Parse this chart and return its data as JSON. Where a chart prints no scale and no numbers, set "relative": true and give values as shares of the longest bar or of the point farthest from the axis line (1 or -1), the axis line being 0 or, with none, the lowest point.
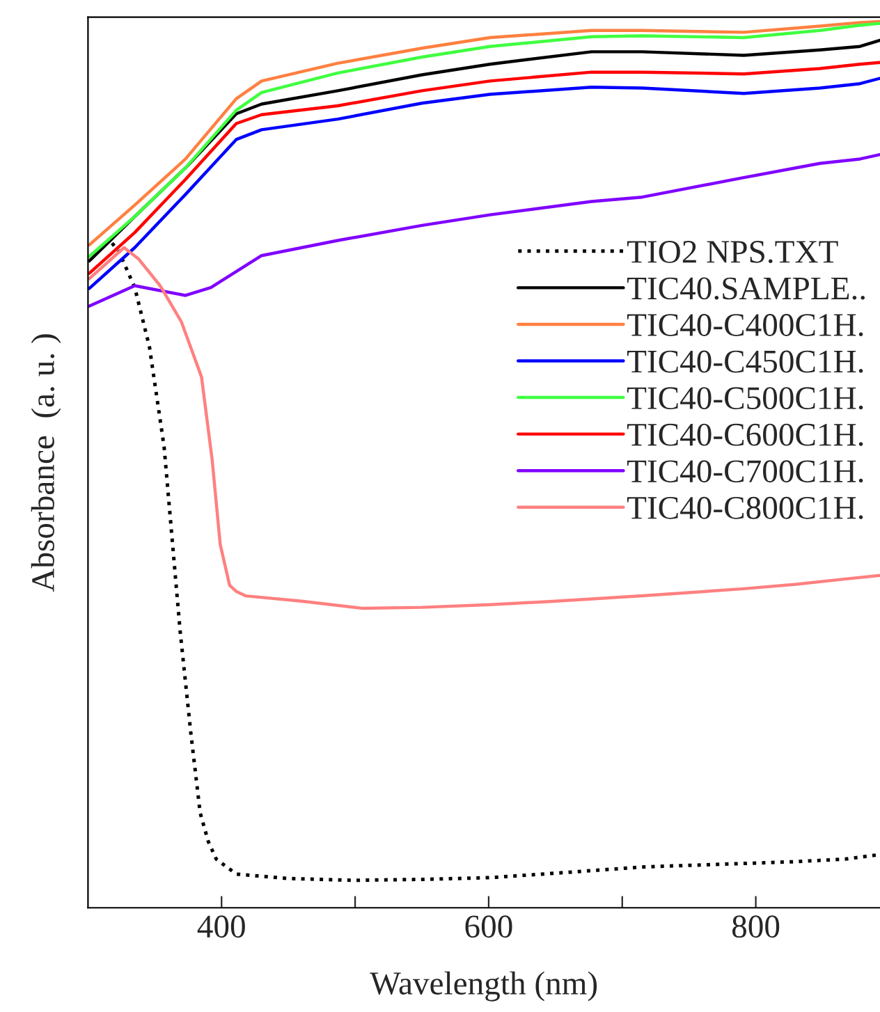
{
  "chart_data": {
    "type": "line",
    "relative": true,
    "xlabel": "Wavelength (nm)",
    "ylabel": "Absorbance  (a. u. )",
    "xlim": [
      300,
      893
    ],
    "xticks": [
      400,
      {
        "value": 500,
        "label": null
      },
      600,
      {
        "value": 700,
        "label": null
      },
      800
    ],
    "legend": "upper right",
    "grid": false,
    "tick_labels": "x",
    "series": [
      {
        "name": "TIO2 NPS.TXT",
        "color": "#000000",
        "line_style": "dotted",
        "x": [
          318,
          323,
          335,
          346,
          357,
          366,
          369,
          377,
          384,
          390,
          396,
          411,
          450,
          498,
          550,
          601,
          650,
          715,
          791,
          830,
          867,
          893
        ],
        "values": [
          0.75,
          0.741,
          0.7,
          0.633,
          0.52,
          0.364,
          0.312,
          0.197,
          0.107,
          0.075,
          0.055,
          0.038,
          0.033,
          0.031,
          0.032,
          0.034,
          0.039,
          0.046,
          0.05,
          0.052,
          0.055,
          0.06
        ]
      },
      {
        "name": "TIC40.SAMPLE..",
        "color": "#000000",
        "x": [
          301,
          335,
          373,
          411,
          430,
          487,
          550,
          601,
          677,
          715,
          791,
          848,
          878,
          893
        ],
        "values": [
          0.73,
          0.78,
          0.835,
          0.896,
          0.907,
          0.922,
          0.94,
          0.952,
          0.966,
          0.966,
          0.962,
          0.968,
          0.972,
          0.979
        ]
      },
      {
        "name": "TIC40-C400C1H.",
        "color": "#ff8040",
        "x": [
          301,
          335,
          373,
          411,
          430,
          487,
          550,
          601,
          677,
          715,
          791,
          848,
          878,
          893
        ],
        "values": [
          0.748,
          0.793,
          0.845,
          0.913,
          0.933,
          0.953,
          0.97,
          0.982,
          0.99,
          0.99,
          0.988,
          0.995,
          0.999,
          1.0
        ]
      },
      {
        "name": "TIC40-C450C1H.",
        "color": "#0000ff",
        "x": [
          301,
          335,
          373,
          411,
          430,
          487,
          550,
          601,
          677,
          715,
          791,
          848,
          878,
          893
        ],
        "values": [
          0.699,
          0.745,
          0.805,
          0.867,
          0.878,
          0.89,
          0.908,
          0.918,
          0.926,
          0.925,
          0.919,
          0.925,
          0.93,
          0.936
        ]
      },
      {
        "name": "TIC40-C500C1H.",
        "color": "#40ff40",
        "x": [
          301,
          335,
          373,
          411,
          430,
          487,
          550,
          601,
          677,
          715,
          791,
          848,
          878,
          893
        ],
        "values": [
          0.735,
          0.78,
          0.835,
          0.9,
          0.92,
          0.942,
          0.96,
          0.972,
          0.983,
          0.984,
          0.982,
          0.99,
          0.996,
          0.998
        ]
      },
      {
        "name": "TIC40-C600C1H.",
        "color": "#ff0000",
        "x": [
          301,
          335,
          373,
          411,
          430,
          487,
          550,
          601,
          677,
          715,
          791,
          848,
          878,
          893
        ],
        "values": [
          0.716,
          0.762,
          0.822,
          0.885,
          0.895,
          0.905,
          0.922,
          0.933,
          0.943,
          0.943,
          0.941,
          0.947,
          0.952,
          0.954
        ]
      },
      {
        "name": "TIC40-C700C1H.",
        "color": "#8000ff",
        "x": [
          301,
          335,
          373,
          392,
          430,
          487,
          550,
          601,
          677,
          715,
          791,
          848,
          878,
          893
        ],
        "values": [
          0.679,
          0.702,
          0.691,
          0.7,
          0.736,
          0.753,
          0.77,
          0.782,
          0.797,
          0.802,
          0.824,
          0.84,
          0.845,
          0.85
        ]
      },
      {
        "name": "TIC40-C800C1H.",
        "color": "#ff8080",
        "x": [
          301,
          327,
          338,
          354,
          370,
          385,
          393,
          399,
          406,
          411,
          418,
          460,
          505,
          550,
          601,
          650,
          715,
          791,
          830,
          867,
          893
        ],
        "values": [
          0.71,
          0.745,
          0.732,
          0.702,
          0.661,
          0.599,
          0.505,
          0.41,
          0.364,
          0.357,
          0.352,
          0.346,
          0.338,
          0.339,
          0.342,
          0.346,
          0.352,
          0.36,
          0.365,
          0.371,
          0.375
        ]
      }
    ]
  }
}
